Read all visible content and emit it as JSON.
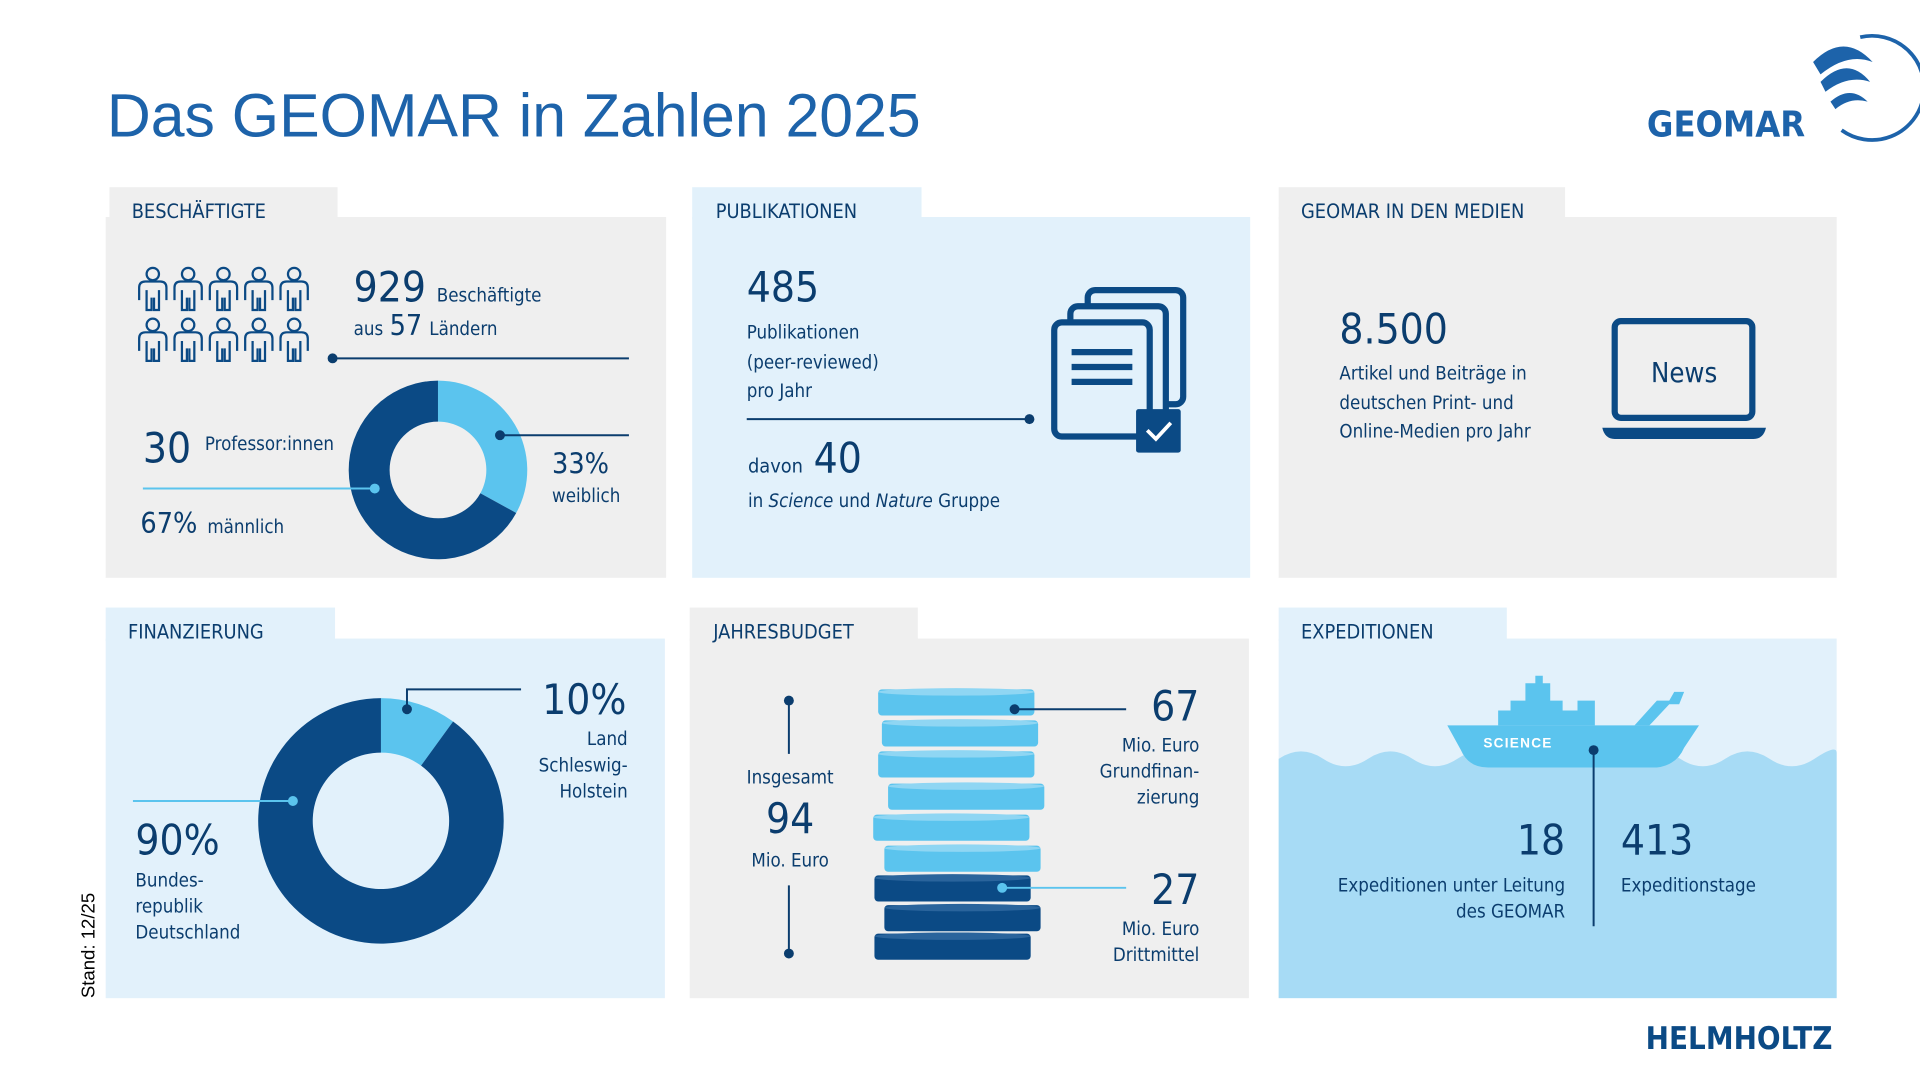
{
  "header": {
    "title": "Das GEOMAR in Zahlen 2025",
    "logo": "GEOMAR"
  },
  "staff": {
    "heading": "BESCHÄFTIGTE",
    "employees": 929,
    "employees_label": "Beschäftigte",
    "countries_prefix": "aus",
    "countries": 57,
    "countries_label": "Ländern",
    "professors": 30,
    "professors_label": "Professor:innen",
    "gender": {
      "names": [
        "weiblich",
        "männlich"
      ],
      "values": [
        33,
        67
      ],
      "value_labels": [
        "33%",
        "67%"
      ],
      "colors": [
        "#5bc4ee",
        "#0b4a85"
      ]
    }
  },
  "publications": {
    "heading": "PUBLIKATIONEN",
    "count": 485,
    "lines": [
      "Publikationen",
      "(peer-reviewed)",
      "pro Jahr"
    ],
    "prefix": "davon",
    "top": 40,
    "note": [
      "in",
      "Science",
      "und",
      "Nature",
      "Gruppe"
    ]
  },
  "media": {
    "heading": "GEOMAR IN DEN MEDIEN",
    "count": "8.500",
    "lines": [
      "Artikel und Beiträge in",
      "deutschen Print- und",
      "Online-Medien pro Jahr"
    ],
    "icon_label": "News"
  },
  "funding": {
    "heading": "FINANZIERUNG",
    "names": [
      "Land Schleswig-Holstein",
      "Bundesrepublik Deutschland"
    ],
    "values": [
      10,
      90
    ],
    "value_labels": [
      "10%",
      "90%"
    ],
    "colors": [
      "#5bc4ee",
      "#0b4a85"
    ],
    "label_lines": [
      [
        "Land",
        "Schleswig-",
        "Holstein"
      ],
      [
        "Bundes-",
        "republik",
        "Deutschland"
      ]
    ]
  },
  "budget": {
    "heading": "JAHRESBUDGET",
    "total_label": "Insgesamt",
    "total": 94,
    "unit": "Mio. Euro",
    "core": 67,
    "core_lines": [
      "Mio. Euro",
      "Grundfinan-",
      "zierung"
    ],
    "third": 27,
    "third_lines": [
      "Mio. Euro",
      "Drittmittel"
    ]
  },
  "expeditions": {
    "heading": "EXPEDITIONEN",
    "ship": "SCIENCE",
    "count": 18,
    "count_lines": [
      "Expeditionen unter Leitung",
      "des GEOMAR"
    ],
    "days": 413,
    "days_label": "Expeditionstage"
  },
  "footer": {
    "stand": "Stand: 12/25",
    "brand": "HELMHOLTZ"
  }
}
